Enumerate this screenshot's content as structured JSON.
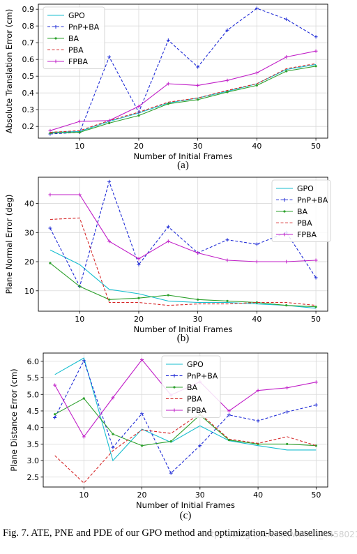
{
  "colors": {
    "GPO": "#17becf",
    "PnP+BA": "#1f2bd6",
    "BA": "#2ca02c",
    "PBA": "#d62728",
    "FPBA": "#c11fc8"
  },
  "chart_data": [
    {
      "type": "line",
      "subfigure": "(a)",
      "xlabel": "Number of Initial Frames",
      "ylabel": "Absolute Translation Error (cm)",
      "x": [
        5,
        10,
        15,
        20,
        25,
        30,
        35,
        40,
        45,
        50
      ],
      "xlim": [
        3,
        52
      ],
      "ylim": [
        0.13,
        0.93
      ],
      "xticks": [
        10,
        20,
        30,
        40,
        50
      ],
      "yticks": [
        0.2,
        0.3,
        0.4,
        0.5,
        0.6,
        0.7,
        0.8,
        0.9
      ],
      "ytick_labels": [
        "0.2",
        "0.3",
        "0.4",
        "0.5",
        "0.6",
        "0.7",
        "0.8",
        "0.9"
      ],
      "grid": true,
      "legend": "top-left",
      "series": [
        {
          "name": "GPO",
          "values": [
            0.165,
            0.17,
            0.23,
            0.28,
            0.34,
            0.37,
            0.41,
            0.455,
            0.54,
            0.57
          ],
          "style": "solid",
          "marker": "none"
        },
        {
          "name": "PnP+BA",
          "values": [
            0.155,
            0.165,
            0.615,
            0.285,
            0.715,
            0.555,
            0.775,
            0.905,
            0.84,
            0.735
          ],
          "style": "dashed",
          "marker": "plus"
        },
        {
          "name": "BA",
          "values": [
            0.16,
            0.165,
            0.22,
            0.265,
            0.335,
            0.36,
            0.405,
            0.445,
            0.53,
            0.56
          ],
          "style": "solid",
          "marker": "dot"
        },
        {
          "name": "PBA",
          "values": [
            0.165,
            0.175,
            0.235,
            0.285,
            0.345,
            0.37,
            0.415,
            0.455,
            0.545,
            0.575
          ],
          "style": "dashed",
          "marker": "none"
        },
        {
          "name": "FPBA",
          "values": [
            0.175,
            0.23,
            0.235,
            0.32,
            0.455,
            0.445,
            0.475,
            0.52,
            0.615,
            0.65
          ],
          "style": "solid",
          "marker": "plus"
        }
      ]
    },
    {
      "type": "line",
      "subfigure": "(b)",
      "xlabel": "Number of Initial Frames",
      "ylabel": "Plane Normal Error (deg)",
      "x": [
        5,
        10,
        15,
        20,
        25,
        30,
        35,
        40,
        45,
        50
      ],
      "xlim": [
        3,
        52
      ],
      "ylim": [
        3,
        49
      ],
      "xticks": [
        10,
        20,
        30,
        40,
        50
      ],
      "yticks": [
        10,
        20,
        30,
        40
      ],
      "ytick_labels": [
        "10",
        "20",
        "30",
        "40"
      ],
      "grid": true,
      "legend": "top-right",
      "series": [
        {
          "name": "GPO",
          "values": [
            24.0,
            19.0,
            10.5,
            9.0,
            6.5,
            6.0,
            6.0,
            5.5,
            5.0,
            4.0
          ],
          "style": "solid",
          "marker": "none"
        },
        {
          "name": "PnP+BA",
          "values": [
            31.5,
            11.5,
            47.5,
            19.0,
            32.0,
            23.0,
            27.5,
            26.0,
            30.0,
            14.5
          ],
          "style": "dashed",
          "marker": "plus"
        },
        {
          "name": "BA",
          "values": [
            19.5,
            11.5,
            7.0,
            7.5,
            8.5,
            7.0,
            6.5,
            6.0,
            5.0,
            4.5
          ],
          "style": "solid",
          "marker": "dot"
        },
        {
          "name": "PBA",
          "values": [
            34.5,
            35.0,
            6.0,
            6.0,
            5.0,
            5.5,
            5.5,
            6.0,
            6.0,
            5.0
          ],
          "style": "dashed",
          "marker": "none"
        },
        {
          "name": "FPBA",
          "values": [
            43.0,
            43.0,
            27.0,
            21.0,
            27.0,
            23.0,
            20.5,
            20.0,
            20.0,
            20.5
          ],
          "style": "solid",
          "marker": "plus"
        }
      ]
    },
    {
      "type": "line",
      "subfigure": "(c)",
      "xlabel": "Number of Initial Frames",
      "ylabel": "Plane Distance Error (cm)",
      "x": [
        5,
        10,
        15,
        20,
        25,
        30,
        35,
        40,
        45,
        50
      ],
      "xlim": [
        3,
        52
      ],
      "ylim": [
        2.2,
        6.25
      ],
      "xticks": [
        10,
        20,
        30,
        40,
        50
      ],
      "yticks": [
        2.5,
        3.0,
        3.5,
        4.0,
        4.5,
        5.0,
        5.5,
        6.0
      ],
      "ytick_labels": [
        "2.5",
        "3.0",
        "3.5",
        "4.0",
        "4.5",
        "5.0",
        "5.5",
        "6.0"
      ],
      "grid": true,
      "legend": "top-center",
      "series": [
        {
          "name": "GPO",
          "values": [
            5.6,
            6.1,
            3.0,
            3.95,
            3.55,
            4.05,
            3.6,
            3.45,
            3.32,
            3.32
          ],
          "style": "solid",
          "marker": "none"
        },
        {
          "name": "PnP+BA",
          "values": [
            4.3,
            6.02,
            3.4,
            4.42,
            2.62,
            3.45,
            4.38,
            4.2,
            4.47,
            4.68
          ],
          "style": "dashed",
          "marker": "plus"
        },
        {
          "name": "BA",
          "values": [
            4.4,
            4.88,
            3.8,
            3.45,
            3.58,
            4.38,
            3.62,
            3.5,
            3.5,
            3.45
          ],
          "style": "solid",
          "marker": "dot"
        },
        {
          "name": "PBA",
          "values": [
            3.15,
            2.32,
            3.3,
            3.93,
            3.82,
            4.42,
            3.65,
            3.52,
            3.72,
            3.45
          ],
          "style": "dashed",
          "marker": "none"
        },
        {
          "name": "FPBA",
          "values": [
            5.28,
            3.72,
            4.9,
            6.05,
            4.98,
            5.38,
            4.5,
            5.12,
            5.2,
            5.37
          ],
          "style": "solid",
          "marker": "plus"
        }
      ]
    }
  ],
  "caption": "Fig. 7.   ATE, PNE and PDE of our GPO method and optimization-based baselines.",
  "watermark": "https://blog.csdn.net/weixin_44580210"
}
